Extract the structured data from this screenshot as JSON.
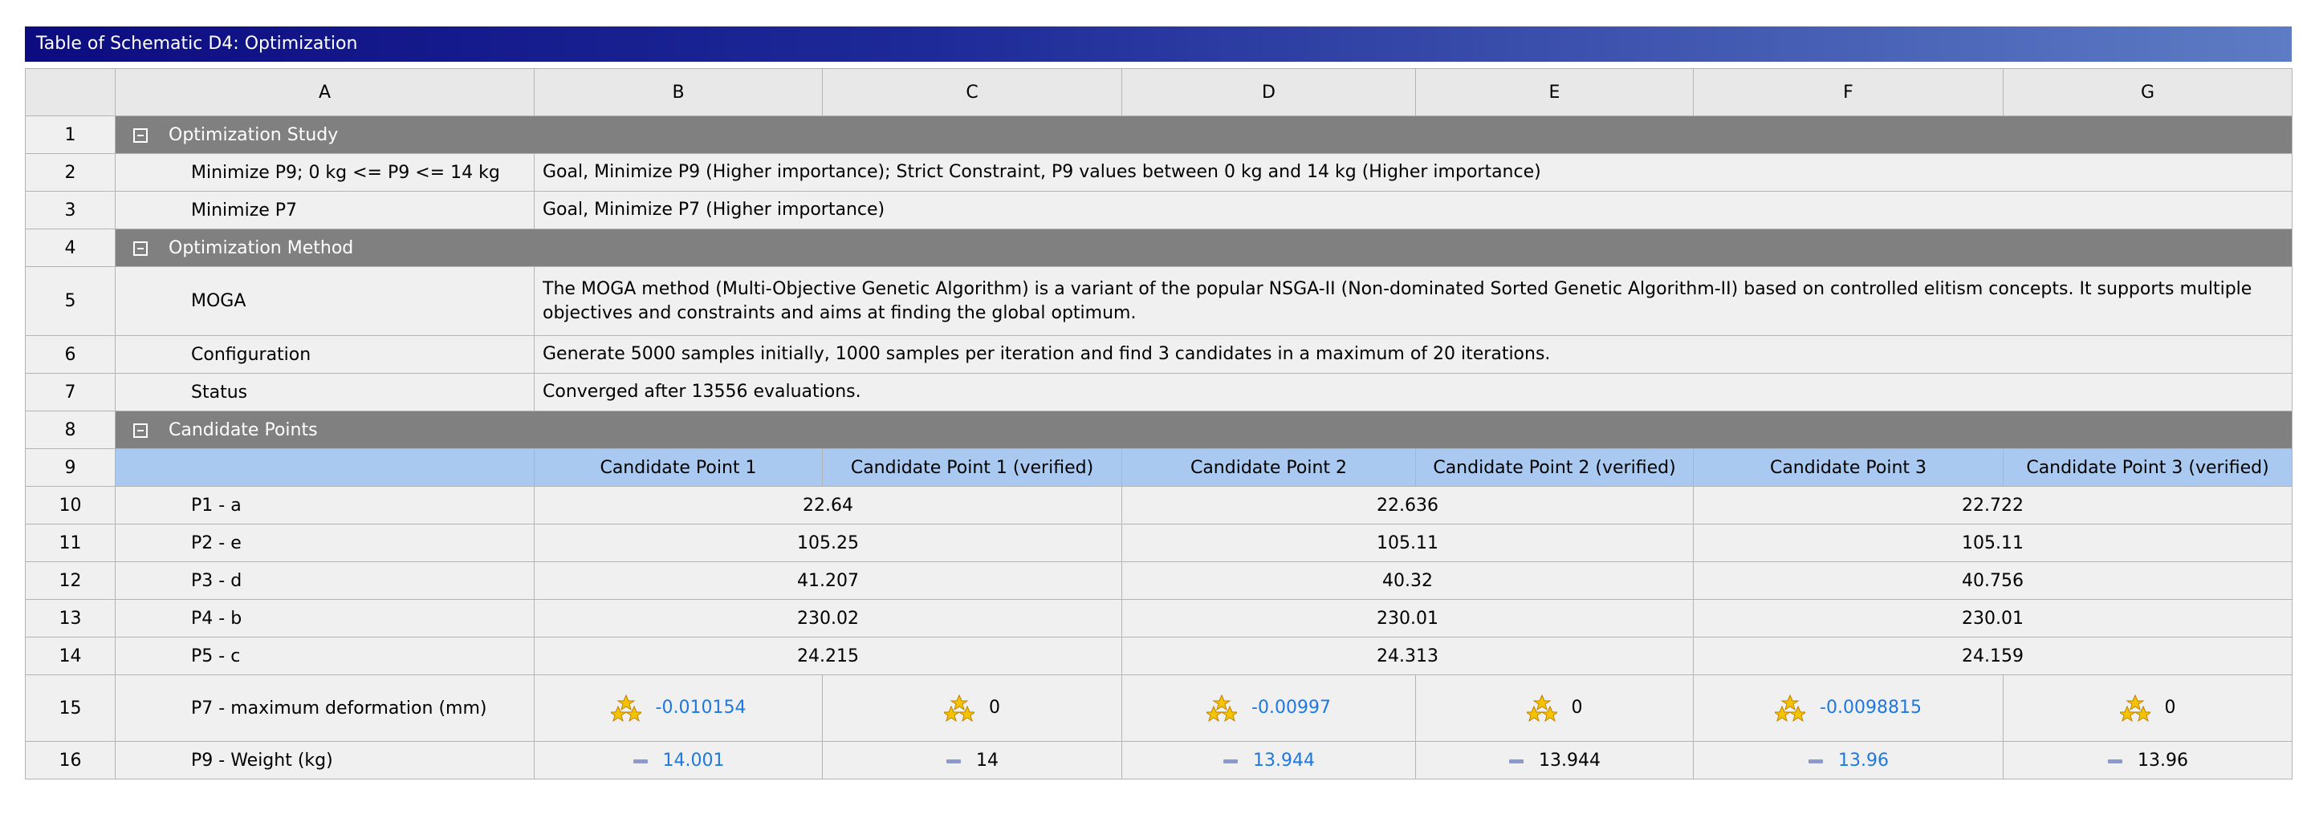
{
  "title": "Table of Schematic D4: Optimization",
  "column_headers": [
    "A",
    "B",
    "C",
    "D",
    "E",
    "F",
    "G"
  ],
  "rows": [
    {
      "number": 1,
      "section": "Optimization Study"
    },
    {
      "number": 2,
      "label": "Minimize P9; 0 kg <= P9 <= 14 kg",
      "description": "Goal, Minimize P9 (Higher importance); Strict Constraint, P9 values between 0 kg and 14 kg (Higher importance)"
    },
    {
      "number": 3,
      "label": "Minimize P7",
      "description": "Goal, Minimize P7 (Higher importance)"
    },
    {
      "number": 4,
      "section": "Optimization Method"
    },
    {
      "number": 5,
      "label": "MOGA",
      "description": "The MOGA method (Multi-Objective Genetic Algorithm) is a variant of the popular NSGA-II (Non-dominated Sorted Genetic Algorithm-II) based on controlled elitism concepts. It supports multiple objectives and constraints and aims at finding the global optimum."
    },
    {
      "number": 6,
      "label": "Configuration",
      "description": "Generate 5000 samples initially, 1000 samples per iteration and find 3 candidates in a maximum of 20 iterations."
    },
    {
      "number": 7,
      "label": "Status",
      "description": "Converged after 13556 evaluations."
    },
    {
      "number": 8,
      "section": "Candidate Points"
    },
    {
      "number": 9,
      "headers": [
        "Candidate Point 1",
        "Candidate Point 1 (verified)",
        "Candidate Point 2",
        "Candidate Point 2 (verified)",
        "Candidate Point 3",
        "Candidate Point 3 (verified)"
      ]
    },
    {
      "number": 10,
      "label": "P1 - a",
      "values": [
        22.64,
        22.636,
        22.722
      ]
    },
    {
      "number": 11,
      "label": "P2 - e",
      "values": [
        105.25,
        105.11,
        105.11
      ]
    },
    {
      "number": 12,
      "label": "P3 - d",
      "values": [
        41.207,
        40.32,
        40.756
      ]
    },
    {
      "number": 13,
      "label": "P4 - b",
      "values": [
        230.02,
        230.01,
        230.01
      ]
    },
    {
      "number": 14,
      "label": "P5 - c",
      "values": [
        24.215,
        24.313,
        24.159
      ]
    },
    {
      "number": 15,
      "label": "P7 - maximum deformation (mm)",
      "values": [
        -0.010154,
        0,
        -0.00997,
        0,
        -0.0098815,
        0
      ]
    },
    {
      "number": 16,
      "label": "P9 - Weight (kg)",
      "values": [
        14.001,
        14,
        13.944,
        13.944,
        13.96,
        13.96
      ]
    }
  ]
}
